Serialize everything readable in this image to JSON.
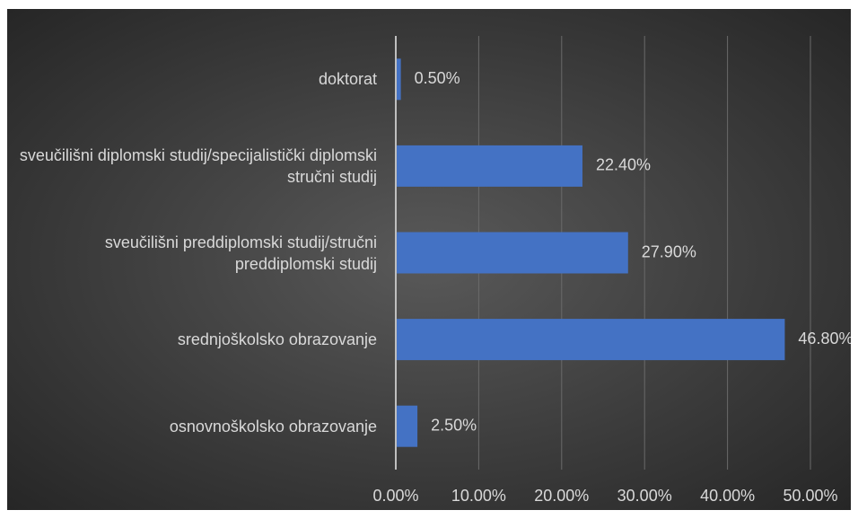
{
  "chart_data": {
    "type": "bar",
    "orientation": "horizontal",
    "categories": [
      "doktorat",
      "sveučilišni diplomski studij/specijalistički diplomski stručni studij",
      "sveučilišni preddiplomski studij/stručni preddiplomski studij",
      "srednjoškolsko obrazovanje",
      "osnovnoškolsko obrazovanje"
    ],
    "values": [
      0.5,
      22.4,
      27.9,
      46.8,
      2.5
    ],
    "value_labels": [
      "0.50%",
      "22.40%",
      "27.90%",
      "46.80%",
      "2.50%"
    ],
    "color": "#4472c4",
    "xlim": [
      0,
      50
    ],
    "xticks": [
      {
        "value": 0,
        "label": "0.00%"
      },
      {
        "value": 10,
        "label": "10.00%"
      },
      {
        "value": 20,
        "label": "20.00%"
      },
      {
        "value": 30,
        "label": "30.00%"
      },
      {
        "value": 40,
        "label": "40.00%"
      },
      {
        "value": 50,
        "label": "50.00%"
      }
    ],
    "grid": true
  }
}
